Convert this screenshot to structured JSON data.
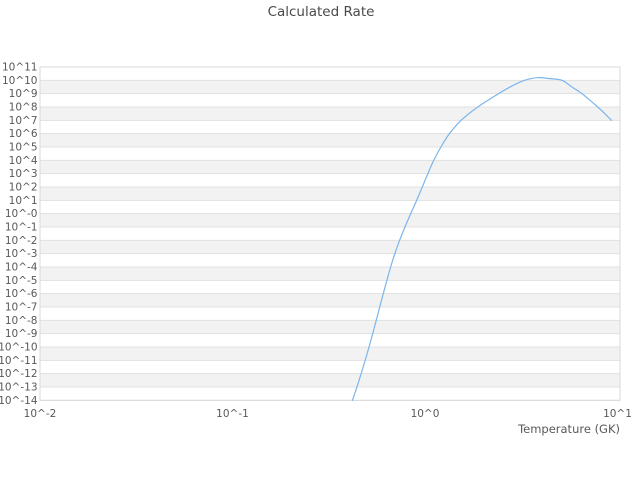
{
  "chart_data": {
    "type": "line",
    "title": "Calculated Rate",
    "xlabel": "Temperature (GK)",
    "ylabel": "",
    "x_scale": "log",
    "y_scale": "log",
    "legend": "none",
    "x_tick_labels": [
      "10^-2",
      "10^-1",
      "10^0",
      "10^1"
    ],
    "x_tick_values": [
      0.01,
      0.1,
      1,
      10
    ],
    "y_tick_labels": [
      "10^11",
      "10^10",
      "10^9",
      "10^8",
      "10^7",
      "10^6",
      "10^5",
      "10^4",
      "10^3",
      "10^2",
      "10^1",
      "10^-0",
      "10^-1",
      "10^-2",
      "10^-3",
      "10^-4",
      "10^-5",
      "10^-6",
      "10^-7",
      "10^-8",
      "10^-9",
      "10^-10",
      "10^-11",
      "10^-12",
      "10^-13",
      "10^-14"
    ],
    "y_tick_exponents": [
      11,
      10,
      9,
      8,
      7,
      6,
      5,
      4,
      3,
      2,
      1,
      0,
      -1,
      -2,
      -3,
      -4,
      -5,
      -6,
      -7,
      -8,
      -9,
      -10,
      -11,
      -12,
      -13,
      -14
    ],
    "xlim_log10": [
      -2,
      1.013
    ],
    "ylim_log10": [
      -14,
      11
    ],
    "grid": {
      "horizontal_lines": true,
      "vertical_lines": false,
      "alternating_bands": true
    },
    "series": [
      {
        "name": "Calculated Rate",
        "color": "#7cb5ec",
        "T_GK": [
          0.42,
          0.443,
          0.466,
          0.489,
          0.512,
          0.535,
          0.558,
          0.582,
          0.607,
          0.634,
          0.663,
          0.697,
          0.738,
          0.787,
          0.843,
          0.905,
          0.968,
          1.035,
          1.11,
          1.21,
          1.34,
          1.54,
          1.88,
          2.41,
          2.85,
          3.29,
          3.83,
          4.45,
          5.15,
          5.8,
          6.54,
          7.2,
          7.89,
          8.6,
          9.3
        ],
        "log10_rate": [
          -14,
          -13,
          -12,
          -11,
          -10,
          -9,
          -8,
          -7,
          -6,
          -5,
          -4,
          -3,
          -2,
          -1,
          0,
          1,
          2,
          3,
          4,
          5,
          6,
          7,
          8,
          9,
          9.6,
          10.0,
          10.2,
          10.13,
          10.0,
          9.5,
          9.0,
          8.5,
          8.0,
          7.5,
          7.0
        ]
      }
    ],
    "colors": {
      "band": "#f2f2f2",
      "gridline": "#e1e1e1",
      "border": "#d9d9d9",
      "tick_text": "#595959",
      "title_text": "#4a4a4a",
      "background": "#ffffff"
    }
  }
}
